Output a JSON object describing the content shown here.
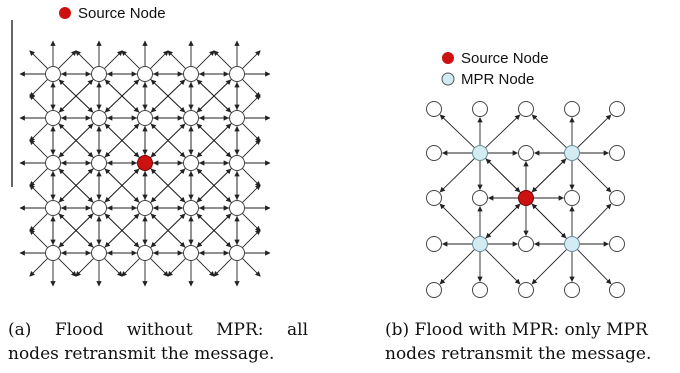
{
  "panel_a": {
    "legend": [
      {
        "label": "Source Node",
        "color": "#cc1111"
      }
    ],
    "caption_lines": [
      "(a)  Flood  without  MPR:  all",
      "nodes retransmit the message."
    ]
  },
  "panel_b": {
    "legend": [
      {
        "label": "Source Node",
        "color": "#cc1111"
      },
      {
        "label": "MPR Node",
        "color": "#d3ecf3"
      }
    ],
    "caption_lines": [
      "(b) Flood with MPR: only MPR",
      "nodes retransmit the message."
    ]
  },
  "colors": {
    "source_node": "#cc1111",
    "mpr_node": "#d3ecf3",
    "plain_node": "#ffffff",
    "edge": "#222222"
  }
}
